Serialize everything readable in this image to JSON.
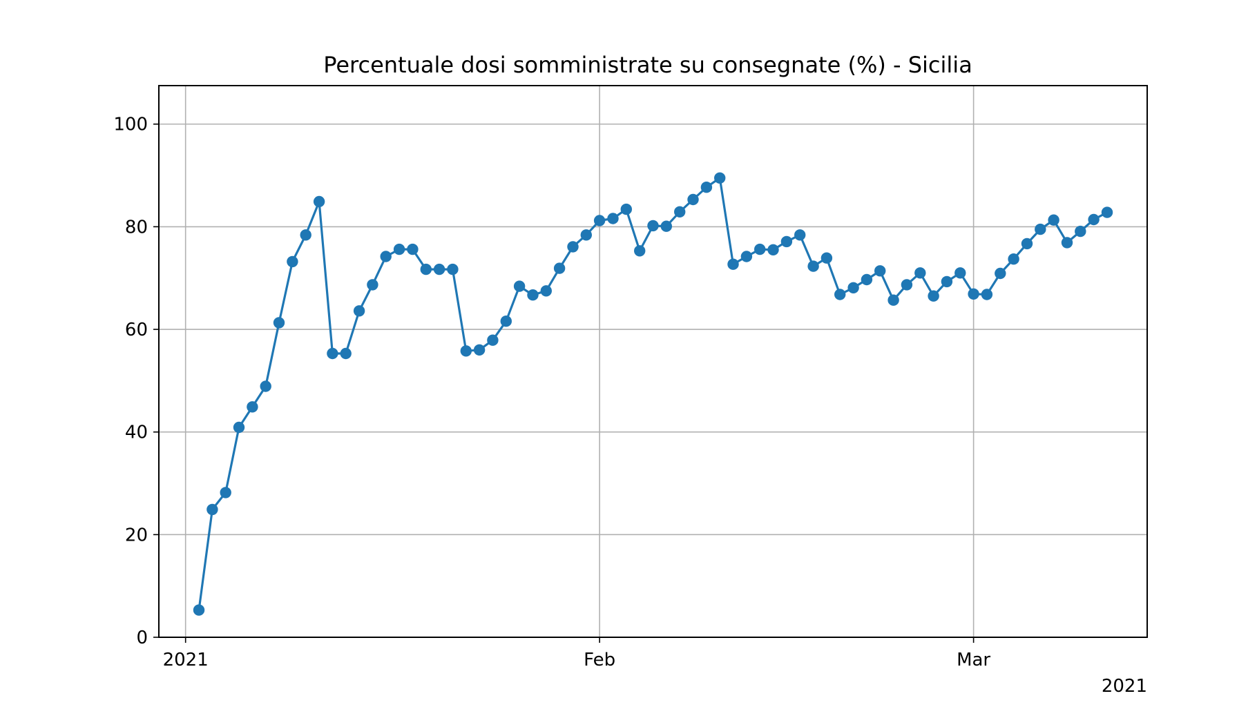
{
  "chart_data": {
    "type": "line",
    "title": "Percentuale dosi somministrate su consegnate (%) - Sicilia",
    "xlabel": "",
    "ylabel": "",
    "xlim": [
      "2020-12-30",
      "2021-03-14"
    ],
    "ylim": [
      0,
      107.5
    ],
    "yticks": [
      0,
      20,
      40,
      60,
      80,
      100
    ],
    "xticks": [
      {
        "date": "2021-01-01",
        "label": "2021"
      },
      {
        "date": "2021-02-01",
        "label": "Feb"
      },
      {
        "date": "2021-03-01",
        "label": "Mar"
      }
    ],
    "x_offset_label": "2021",
    "grid": true,
    "marker": "circle",
    "color": "#1f77b4",
    "series": [
      {
        "x": [
          "2021-01-02",
          "2021-01-03",
          "2021-01-04",
          "2021-01-05",
          "2021-01-06",
          "2021-01-07",
          "2021-01-08",
          "2021-01-09",
          "2021-01-10",
          "2021-01-11",
          "2021-01-12",
          "2021-01-13",
          "2021-01-14",
          "2021-01-15",
          "2021-01-16",
          "2021-01-17",
          "2021-01-18",
          "2021-01-19",
          "2021-01-20",
          "2021-01-21",
          "2021-01-22",
          "2021-01-23",
          "2021-01-24",
          "2021-01-25",
          "2021-01-26",
          "2021-01-27",
          "2021-01-28",
          "2021-01-29",
          "2021-01-30",
          "2021-01-31",
          "2021-02-01",
          "2021-02-02",
          "2021-02-03",
          "2021-02-04",
          "2021-02-05",
          "2021-02-06",
          "2021-02-07",
          "2021-02-08",
          "2021-02-09",
          "2021-02-10",
          "2021-02-11",
          "2021-02-12",
          "2021-02-13",
          "2021-02-14",
          "2021-02-15",
          "2021-02-16",
          "2021-02-17",
          "2021-02-18",
          "2021-02-19",
          "2021-02-20",
          "2021-02-21",
          "2021-02-22",
          "2021-02-23",
          "2021-02-24",
          "2021-02-25",
          "2021-02-26",
          "2021-02-27",
          "2021-02-28",
          "2021-03-01",
          "2021-03-02",
          "2021-03-03",
          "2021-03-04",
          "2021-03-05",
          "2021-03-06",
          "2021-03-07",
          "2021-03-08",
          "2021-03-09",
          "2021-03-10",
          "2021-03-11"
        ],
        "values": [
          5.3,
          24.9,
          28.2,
          40.9,
          44.9,
          48.9,
          61.3,
          73.2,
          78.4,
          84.9,
          55.3,
          55.3,
          63.6,
          68.7,
          74.2,
          75.6,
          75.6,
          71.7,
          71.7,
          71.7,
          55.8,
          56.0,
          57.9,
          61.6,
          68.4,
          66.7,
          67.5,
          71.9,
          76.1,
          78.4,
          81.2,
          81.6,
          83.4,
          75.3,
          80.2,
          80.1,
          82.9,
          85.3,
          87.7,
          89.5,
          72.7,
          74.2,
          75.6,
          75.5,
          77.1,
          78.4,
          72.3,
          73.9,
          66.8,
          68.1,
          69.7,
          71.4,
          65.7,
          68.7,
          71.0,
          66.5,
          69.3,
          71.0,
          66.9,
          66.8,
          70.9,
          73.7,
          76.7,
          79.5,
          81.3,
          76.9,
          79.1,
          81.4,
          82.8
        ]
      }
    ]
  }
}
